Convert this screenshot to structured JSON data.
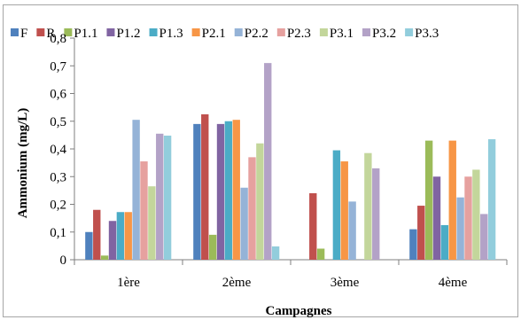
{
  "chart_data": {
    "type": "bar",
    "title": "",
    "xlabel": "Campagnes",
    "ylabel": "Ammonium (mg/L)",
    "ylim": [
      0,
      0.8
    ],
    "yticks": [
      "0",
      "0,1",
      "0,2",
      "0,3",
      "0,4",
      "0,5",
      "0,6",
      "0,7",
      "0,8"
    ],
    "grid": false,
    "legend_position": "top",
    "categories": [
      "1ère",
      "2ème",
      "3ème",
      "4ème"
    ],
    "series": [
      {
        "name": "F",
        "color": "#4F81BD",
        "values": [
          0.1,
          0.49,
          null,
          0.11
        ]
      },
      {
        "name": "R",
        "color": "#C0504D",
        "values": [
          0.18,
          0.525,
          0.24,
          0.195
        ]
      },
      {
        "name": "P1.1",
        "color": "#9BBB59",
        "values": [
          0.015,
          0.09,
          0.04,
          0.43
        ]
      },
      {
        "name": "P1.2",
        "color": "#8064A2",
        "values": [
          0.14,
          0.49,
          null,
          0.3
        ]
      },
      {
        "name": "P1.3",
        "color": "#4BACC6",
        "values": [
          0.172,
          0.5,
          0.395,
          0.125
        ]
      },
      {
        "name": "P2.1",
        "color": "#F79646",
        "values": [
          0.172,
          0.505,
          0.355,
          0.43
        ]
      },
      {
        "name": "P2.2",
        "color": "#95B3D7",
        "values": [
          0.505,
          0.26,
          0.21,
          0.225
        ]
      },
      {
        "name": "P2.3",
        "color": "#E6A19F",
        "values": [
          0.355,
          0.37,
          null,
          0.3
        ]
      },
      {
        "name": "P3.1",
        "color": "#C3D69B",
        "values": [
          0.265,
          0.42,
          0.385,
          0.325
        ]
      },
      {
        "name": "P3.2",
        "color": "#B3A2C7",
        "values": [
          0.455,
          0.71,
          0.33,
          0.165
        ]
      },
      {
        "name": "P3.3",
        "color": "#92CDDC",
        "values": [
          0.448,
          0.048,
          null,
          0.435
        ]
      }
    ]
  }
}
